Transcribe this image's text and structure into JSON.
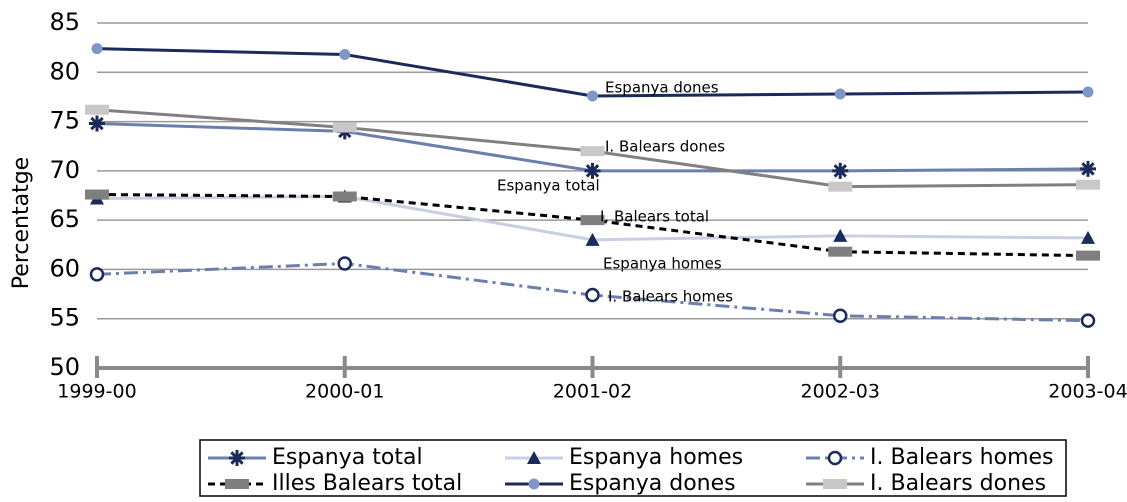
{
  "chart_data": {
    "type": "line",
    "y_label": "Percentatge",
    "categories": [
      "1999-00",
      "2000-01",
      "2001-02",
      "2002-03",
      "2003-04"
    ],
    "ylim": [
      50,
      85
    ],
    "yticks": [
      50,
      55,
      60,
      65,
      70,
      75,
      80,
      85
    ],
    "grid": true,
    "series": [
      {
        "name": "Espanya total",
        "color": "#6b7fae",
        "marker": "star",
        "marker_color": "#1a2a5a",
        "dash": "solid",
        "values": [
          74.8,
          74.0,
          70.0,
          70.0,
          70.2
        ]
      },
      {
        "name": "Espanya homes",
        "color": "#c9cfe3",
        "marker": "triangle",
        "marker_color": "#1a2a5a",
        "dash": "solid",
        "values": [
          67.2,
          67.4,
          63.0,
          63.4,
          63.2
        ]
      },
      {
        "name": "I. Balears homes",
        "color": "#6b7fae",
        "marker": "circle-open",
        "marker_color": "#1a2a5a",
        "dash": "dashdot",
        "values": [
          59.5,
          60.6,
          57.4,
          55.3,
          54.8
        ]
      },
      {
        "name": "Illes Balears total",
        "color": "#000000",
        "marker": "square",
        "marker_color": "#7f7f7f",
        "dash": "dashed",
        "values": [
          67.6,
          67.4,
          65.0,
          61.8,
          61.4
        ]
      },
      {
        "name": "Espanya dones",
        "color": "#1a2a5a",
        "marker": "circle",
        "marker_color": "#8096c8",
        "dash": "solid",
        "values": [
          82.4,
          81.8,
          77.6,
          77.8,
          78.0
        ]
      },
      {
        "name": "I. Balears dones",
        "color": "#808080",
        "marker": "square",
        "marker_color": "#c8c8c8",
        "dash": "solid",
        "values": [
          76.2,
          74.4,
          72.0,
          68.4,
          68.6
        ]
      }
    ],
    "annotations": [
      "Espanya dones",
      "I. Balears dones",
      "Espanya total",
      "I. Balears total",
      "Espanya homes",
      "I. Balears homes"
    ]
  }
}
